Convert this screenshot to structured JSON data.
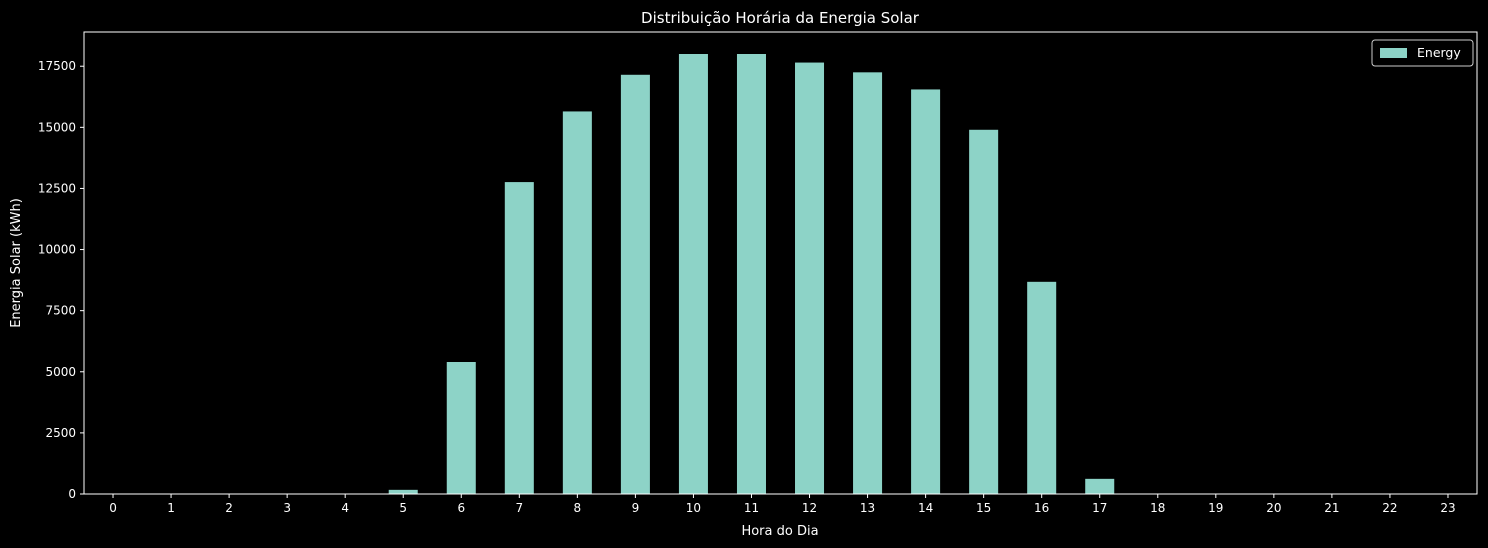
{
  "chart_data": {
    "type": "bar",
    "title": "Distribuição Horária da Energia Solar",
    "xlabel": "Hora do Dia",
    "ylabel": "Energia Solar (kWh)",
    "categories": [
      "0",
      "1",
      "2",
      "3",
      "4",
      "5",
      "6",
      "7",
      "8",
      "9",
      "10",
      "11",
      "12",
      "13",
      "14",
      "15",
      "16",
      "17",
      "18",
      "19",
      "20",
      "21",
      "22",
      "23"
    ],
    "series": [
      {
        "name": "Energy",
        "color": "#8dd3c7",
        "values": [
          0,
          0,
          0,
          0,
          0,
          170,
          5400,
          12760,
          15650,
          17150,
          18000,
          18000,
          17650,
          17250,
          16550,
          14900,
          8680,
          620,
          0,
          0,
          0,
          0,
          0,
          0
        ]
      }
    ],
    "ylim": [
      0,
      18900
    ],
    "yticks": [
      0,
      2500,
      5000,
      7500,
      10000,
      12500,
      15000,
      17500
    ],
    "ytick_labels": [
      "0",
      "2500",
      "5000",
      "7500",
      "10000",
      "12500",
      "15000",
      "17500"
    ],
    "grid": false,
    "legend_position": "top-right",
    "background": "#000000",
    "foreground": "#ffffff"
  }
}
